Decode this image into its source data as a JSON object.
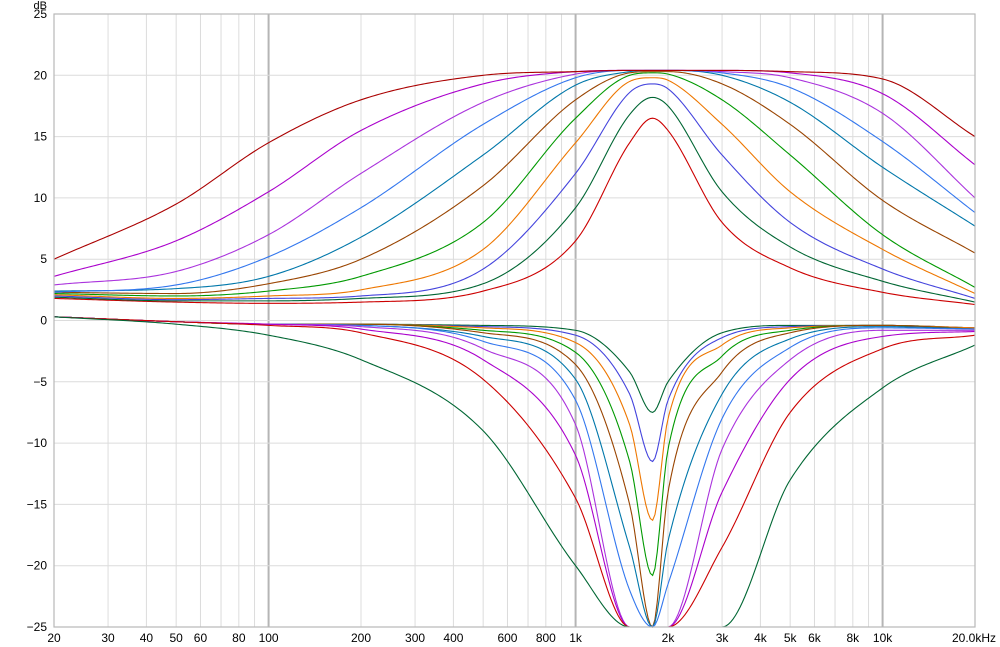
{
  "chart_data": {
    "type": "line",
    "y_unit_label": "dB",
    "x_scale": "log",
    "grid": true,
    "xlim": [
      20,
      20000
    ],
    "ylim": [
      -25,
      25
    ],
    "x_ticks": [
      {
        "value": 20,
        "label": "20"
      },
      {
        "value": 30,
        "label": "30"
      },
      {
        "value": 40,
        "label": "40"
      },
      {
        "value": 50,
        "label": "50"
      },
      {
        "value": 60,
        "label": "60"
      },
      {
        "value": 80,
        "label": "80"
      },
      {
        "value": 100,
        "label": "100"
      },
      {
        "value": 200,
        "label": "200"
      },
      {
        "value": 300,
        "label": "300"
      },
      {
        "value": 400,
        "label": "400"
      },
      {
        "value": 600,
        "label": "600"
      },
      {
        "value": 800,
        "label": "800"
      },
      {
        "value": 1000,
        "label": "1k"
      },
      {
        "value": 2000,
        "label": "2k"
      },
      {
        "value": 3000,
        "label": "3k"
      },
      {
        "value": 4000,
        "label": "4k"
      },
      {
        "value": 5000,
        "label": "5k"
      },
      {
        "value": 6000,
        "label": "6k"
      },
      {
        "value": 8000,
        "label": "8k"
      },
      {
        "value": 10000,
        "label": "10k"
      },
      {
        "value": 20000,
        "label": "20.0kHz"
      }
    ],
    "y_ticks": [
      {
        "value": 25,
        "label": "25"
      },
      {
        "value": 20,
        "label": "20"
      },
      {
        "value": 15,
        "label": "15"
      },
      {
        "value": 10,
        "label": "10"
      },
      {
        "value": 5,
        "label": "5"
      },
      {
        "value": 0,
        "label": "0"
      },
      {
        "value": -5,
        "label": "−5"
      },
      {
        "value": -10,
        "label": "−10"
      },
      {
        "value": -15,
        "label": "−15"
      },
      {
        "value": -20,
        "label": "−20"
      },
      {
        "value": -25,
        "label": "−25"
      }
    ],
    "center_frequency": 1780,
    "series": [
      {
        "group": "boost",
        "color": "#cc0000",
        "x": [
          20,
          50,
          100,
          200,
          500,
          1000,
          1500,
          1780,
          2000,
          3000,
          5000,
          10000,
          20000
        ],
        "values": [
          1.8,
          1.5,
          1.4,
          1.5,
          2.4,
          6.5,
          14.5,
          16.5,
          15.5,
          8.0,
          4.3,
          2.3,
          1.3
        ]
      },
      {
        "group": "boost",
        "color": "#006633",
        "x": [
          20,
          50,
          100,
          200,
          500,
          1000,
          1500,
          1780,
          2000,
          3000,
          5000,
          10000,
          20000
        ],
        "values": [
          1.9,
          1.6,
          1.6,
          1.8,
          3.0,
          9.2,
          16.8,
          18.2,
          17.5,
          10.5,
          6.0,
          3.2,
          1.5
        ]
      },
      {
        "group": "boost",
        "color": "#4444dd",
        "x": [
          20,
          50,
          100,
          200,
          500,
          1000,
          1500,
          1780,
          2000,
          3000,
          5000,
          10000,
          20000
        ],
        "values": [
          2.0,
          1.7,
          1.8,
          2.0,
          4.2,
          12.0,
          18.6,
          19.3,
          18.9,
          13.5,
          8.0,
          4.2,
          1.8
        ]
      },
      {
        "group": "boost",
        "color": "#ee7700",
        "x": [
          20,
          50,
          100,
          200,
          500,
          1000,
          1500,
          1780,
          2000,
          3000,
          5000,
          10000,
          20000
        ],
        "values": [
          2.1,
          1.8,
          2.0,
          2.5,
          5.8,
          14.5,
          19.5,
          19.8,
          19.6,
          16.0,
          10.5,
          5.8,
          2.2
        ]
      },
      {
        "group": "boost",
        "color": "#009900",
        "x": [
          20,
          50,
          100,
          200,
          500,
          1000,
          1500,
          1780,
          2000,
          3000,
          5000,
          10000,
          20000
        ],
        "values": [
          2.2,
          2.0,
          2.4,
          3.6,
          8.0,
          16.5,
          20.0,
          20.2,
          20.1,
          18.0,
          13.5,
          7.0,
          2.7
        ]
      },
      {
        "group": "boost",
        "color": "#994400",
        "x": [
          20,
          50,
          100,
          200,
          500,
          1000,
          1500,
          1780,
          2000,
          3000,
          5000,
          10000,
          20000
        ],
        "values": [
          2.3,
          2.2,
          3.0,
          5.0,
          11.0,
          18.0,
          20.2,
          20.3,
          20.3,
          19.3,
          16.0,
          9.8,
          5.5
        ]
      },
      {
        "group": "boost",
        "color": "#0077aa",
        "x": [
          20,
          50,
          100,
          200,
          500,
          1000,
          1500,
          1780,
          2000,
          3000,
          5000,
          10000,
          20000
        ],
        "values": [
          2.4,
          2.6,
          3.6,
          6.8,
          13.5,
          19.2,
          20.3,
          20.4,
          20.4,
          20.0,
          17.8,
          12.5,
          7.7
        ]
      },
      {
        "group": "boost",
        "color": "#3377ee",
        "x": [
          20,
          50,
          100,
          200,
          500,
          1000,
          1500,
          1780,
          2000,
          3000,
          5000,
          10000,
          20000
        ],
        "values": [
          2.3,
          2.9,
          5.2,
          9.2,
          16.0,
          19.8,
          20.4,
          20.4,
          20.4,
          20.2,
          19.0,
          14.6,
          8.8
        ]
      },
      {
        "group": "boost",
        "color": "#aa33dd",
        "x": [
          20,
          50,
          100,
          200,
          500,
          1000,
          1500,
          1780,
          2000,
          3000,
          5000,
          10000,
          20000
        ],
        "values": [
          2.9,
          4.0,
          7.0,
          12.0,
          17.8,
          20.1,
          20.4,
          20.4,
          20.4,
          20.3,
          19.8,
          16.9,
          10.0
        ]
      },
      {
        "group": "boost",
        "color": "#aa00cc",
        "x": [
          20,
          50,
          100,
          200,
          500,
          1000,
          1500,
          1780,
          2000,
          3000,
          5000,
          10000,
          20000
        ],
        "values": [
          3.6,
          6.5,
          10.5,
          15.5,
          19.3,
          20.3,
          20.4,
          20.4,
          20.4,
          20.4,
          20.2,
          18.5,
          12.7
        ]
      },
      {
        "group": "boost",
        "color": "#aa0000",
        "x": [
          20,
          50,
          100,
          200,
          500,
          1000,
          1500,
          1780,
          2000,
          3000,
          5000,
          10000,
          20000
        ],
        "values": [
          5.0,
          9.5,
          14.5,
          18.0,
          20.0,
          20.3,
          20.4,
          20.4,
          20.4,
          20.4,
          20.3,
          19.7,
          15.0
        ]
      },
      {
        "group": "cut",
        "color": "#006633",
        "x": [
          20,
          50,
          100,
          200,
          500,
          1000,
          1500,
          1780,
          2000,
          3000,
          5000,
          10000,
          20000
        ],
        "values": [
          0.3,
          -0.1,
          -0.3,
          -0.3,
          -0.4,
          -0.8,
          -4.2,
          -7.5,
          -5.0,
          -1.0,
          -0.4,
          -0.4,
          -0.6
        ]
      },
      {
        "group": "cut",
        "color": "#4444dd",
        "x": [
          20,
          50,
          100,
          200,
          500,
          1000,
          1500,
          1780,
          2000,
          3000,
          5000,
          10000,
          20000
        ],
        "values": [
          0.3,
          -0.1,
          -0.3,
          -0.3,
          -0.5,
          -1.2,
          -6.0,
          -11.5,
          -6.5,
          -1.4,
          -0.5,
          -0.4,
          -0.6
        ]
      },
      {
        "group": "cut",
        "color": "#ee7700",
        "x": [
          20,
          50,
          100,
          200,
          500,
          1000,
          1500,
          1780,
          2000,
          3000,
          5000,
          10000,
          20000
        ],
        "values": [
          0.3,
          -0.1,
          -0.3,
          -0.3,
          -0.6,
          -1.8,
          -8.5,
          -16.3,
          -8.0,
          -2.0,
          -0.6,
          -0.4,
          -0.6
        ]
      },
      {
        "group": "cut",
        "color": "#009900",
        "x": [
          20,
          50,
          100,
          200,
          500,
          1000,
          1500,
          1780,
          2000,
          3000,
          5000,
          10000,
          20000
        ],
        "values": [
          0.3,
          -0.1,
          -0.3,
          -0.3,
          -0.8,
          -2.6,
          -11.5,
          -20.8,
          -10.5,
          -2.9,
          -0.8,
          -0.4,
          -0.7
        ]
      },
      {
        "group": "cut",
        "color": "#994400",
        "x": [
          20,
          50,
          100,
          200,
          500,
          1000,
          1500,
          1780,
          2000,
          3000,
          5000,
          10000,
          20000
        ],
        "values": [
          0.3,
          -0.1,
          -0.3,
          -0.3,
          -1.0,
          -3.6,
          -15.0,
          -25.0,
          -14.0,
          -4.2,
          -1.0,
          -0.4,
          -0.7
        ]
      },
      {
        "group": "cut",
        "color": "#0077aa",
        "x": [
          20,
          50,
          100,
          200,
          500,
          1000,
          1500,
          1780,
          2000,
          3000,
          5000,
          10000,
          20000
        ],
        "values": [
          0.3,
          -0.1,
          -0.3,
          -0.4,
          -1.3,
          -4.8,
          -18.5,
          -25.0,
          -18.0,
          -6.0,
          -1.5,
          -0.5,
          -0.7
        ]
      },
      {
        "group": "cut",
        "color": "#3377ee",
        "x": [
          20,
          50,
          100,
          200,
          500,
          1000,
          1500,
          1780,
          2000,
          3000,
          5000,
          10000,
          20000
        ],
        "values": [
          0.3,
          -0.1,
          -0.3,
          -0.4,
          -1.7,
          -6.5,
          -22.0,
          -25.0,
          -21.5,
          -8.0,
          -2.2,
          -0.6,
          -0.7
        ]
      },
      {
        "group": "cut",
        "color": "#aa33dd",
        "x": [
          20,
          50,
          100,
          200,
          500,
          1000,
          1500,
          1780,
          2000,
          3000,
          5000,
          10000,
          20000
        ],
        "values": [
          0.3,
          -0.1,
          -0.3,
          -0.5,
          -2.3,
          -8.5,
          -25.0,
          -25.0,
          -25.0,
          -10.5,
          -3.2,
          -0.8,
          -0.8
        ]
      },
      {
        "group": "cut",
        "color": "#aa00cc",
        "x": [
          20,
          50,
          100,
          200,
          500,
          1000,
          1500,
          1780,
          2000,
          3000,
          5000,
          10000,
          20000
        ],
        "values": [
          0.3,
          -0.1,
          -0.3,
          -0.7,
          -3.2,
          -11.0,
          -25.0,
          -25.0,
          -25.0,
          -14.0,
          -4.8,
          -1.3,
          -0.9
        ]
      },
      {
        "group": "cut",
        "color": "#cc0000",
        "x": [
          20,
          50,
          100,
          200,
          500,
          1000,
          1500,
          1780,
          2000,
          3000,
          5000,
          10000,
          20000
        ],
        "values": [
          0.3,
          -0.1,
          -0.4,
          -1.0,
          -4.8,
          -14.5,
          -25.0,
          -25.0,
          -25.0,
          -18.5,
          -7.5,
          -2.3,
          -1.2
        ]
      },
      {
        "group": "cut",
        "color": "#006633",
        "x": [
          20,
          50,
          100,
          200,
          500,
          1000,
          1500,
          1780,
          2000,
          3000,
          5000,
          10000,
          20000
        ],
        "values": [
          0.3,
          -0.3,
          -1.2,
          -3.2,
          -9.0,
          -20.0,
          -25.0,
          -25.0,
          -25.0,
          -25.0,
          -13.0,
          -5.5,
          -2.0
        ]
      }
    ]
  }
}
